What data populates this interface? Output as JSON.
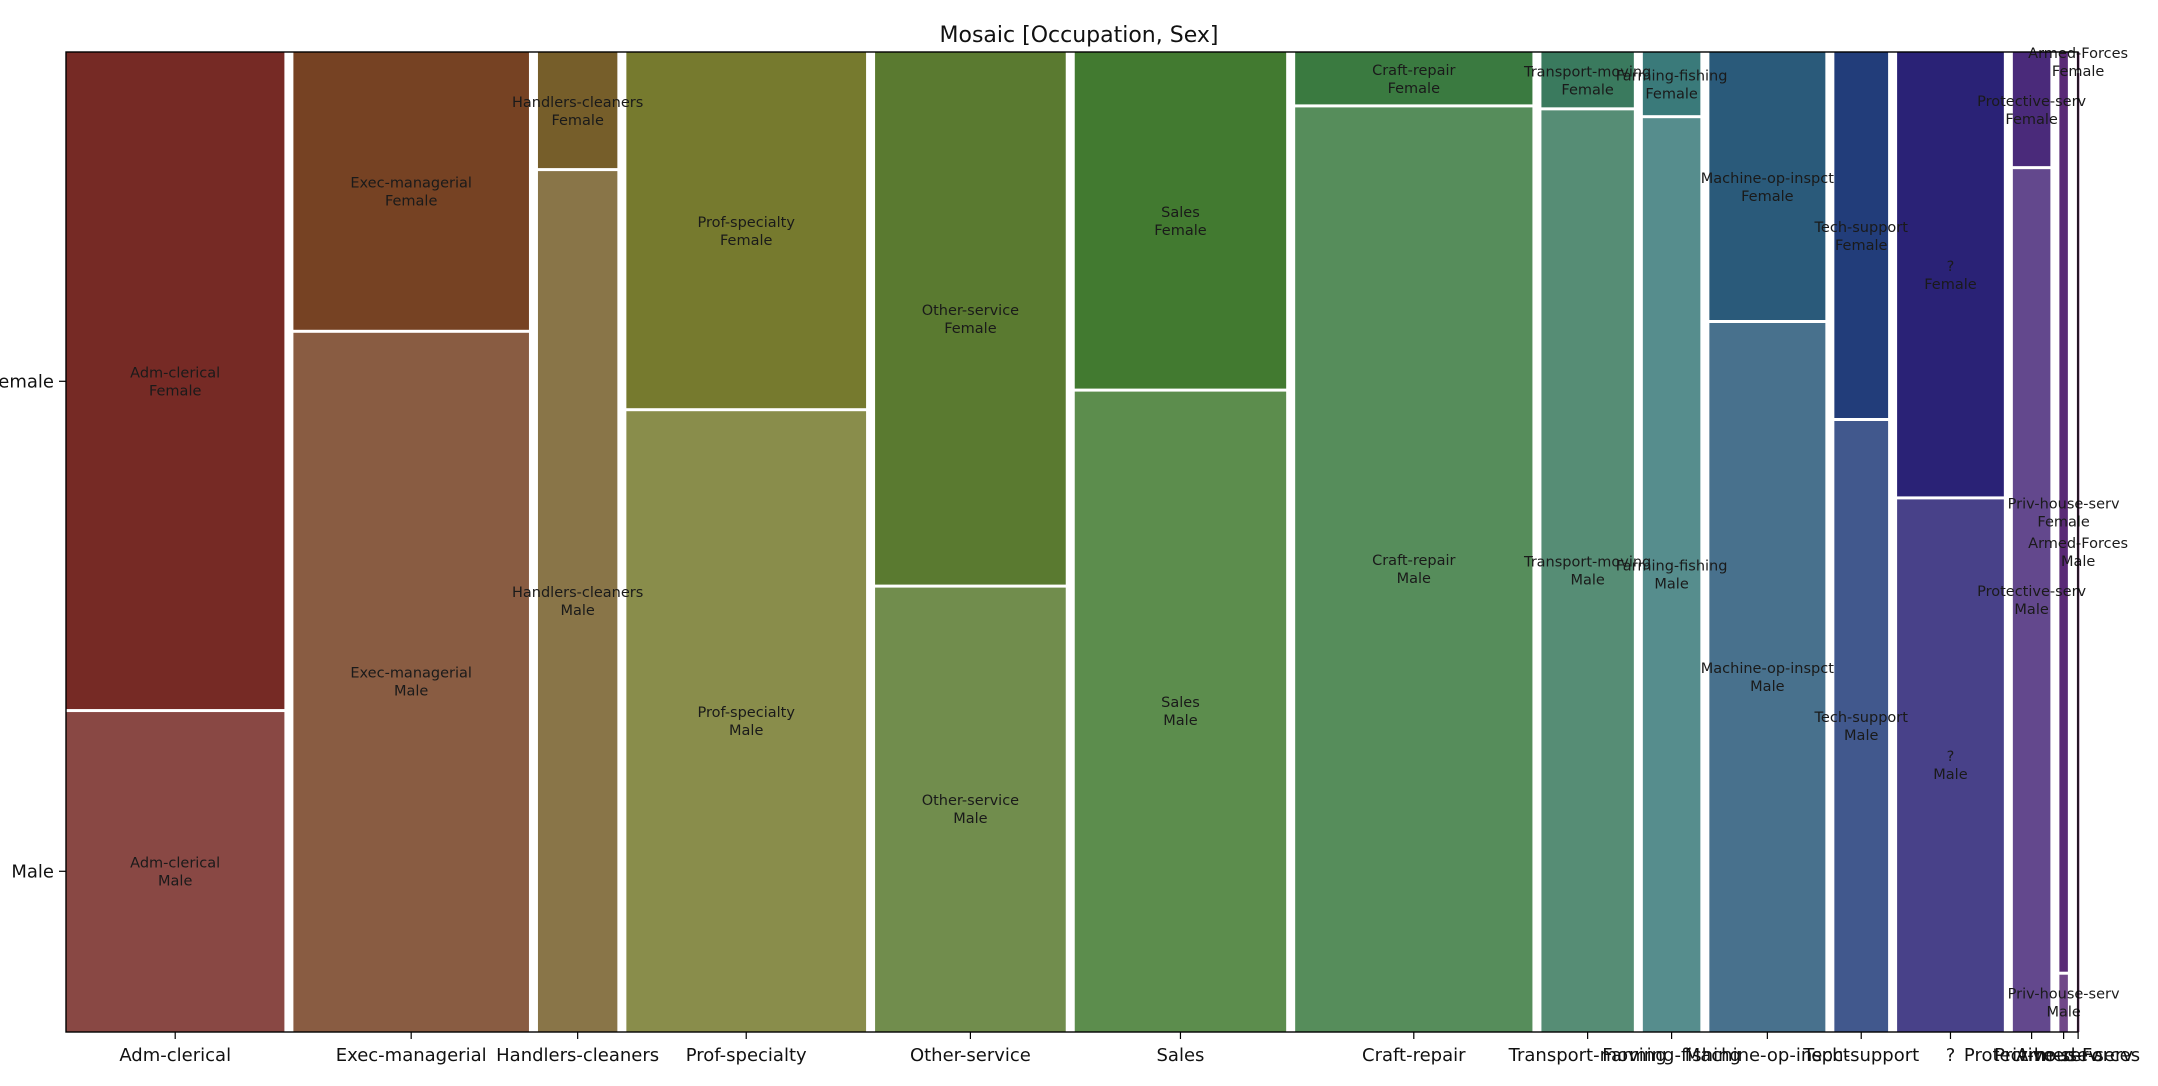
{
  "chart_data": {
    "type": "mosaic",
    "title": "Mosaic [Occupation, Sex]",
    "y_categories": [
      "Male",
      "Female"
    ],
    "legend": "none",
    "grid": false,
    "categories": [
      {
        "name": "Adm-clerical",
        "share": 0.1158,
        "female_fraction": 0.672,
        "color": "#762a25",
        "female_label": "Adm-clerical\nFemale",
        "male_label": "Adm-clerical\nMale"
      },
      {
        "name": "Exec-managerial",
        "share": 0.1249,
        "female_fraction": 0.285,
        "color": "#764223",
        "female_label": "Exec-managerial\nFemale",
        "male_label": "Exec-managerial\nMale"
      },
      {
        "name": "Handlers-cleaners",
        "share": 0.0421,
        "female_fraction": 0.12,
        "color": "#765e2a",
        "female_label": "Handlers-cleaners\nFemale",
        "male_label": "Handlers-cleaners\nMale"
      },
      {
        "name": "Prof-specialty",
        "share": 0.1271,
        "female_fraction": 0.365,
        "color": "#767a2e",
        "female_label": "Prof-specialty\nFemale",
        "male_label": "Prof-specialty\nMale"
      },
      {
        "name": "Other-service",
        "share": 0.1011,
        "female_fraction": 0.545,
        "color": "#5a7a30",
        "female_label": "Other-service\nFemale",
        "male_label": "Other-service\nMale"
      },
      {
        "name": "Sales",
        "share": 0.1121,
        "female_fraction": 0.345,
        "color": "#427a30",
        "female_label": "Sales\nFemale",
        "male_label": "Sales\nMale"
      },
      {
        "name": "Craft-repair",
        "share": 0.1258,
        "female_fraction": 0.055,
        "color": "#3a7a40",
        "female_label": "Craft-repair\nFemale",
        "male_label": "Craft-repair\nMale"
      },
      {
        "name": "Transport-moving",
        "share": 0.049,
        "female_fraction": 0.058,
        "color": "#3a7a5e",
        "female_label": "Transport-moving\nFemale",
        "male_label": "Transport-moving\nMale"
      },
      {
        "name": "Farming-fishing",
        "share": 0.0305,
        "female_fraction": 0.066,
        "color": "#3a7a7a",
        "female_label": "Farming-fishing\nFemale",
        "male_label": "Farming-fishing\nMale"
      },
      {
        "name": "Machine-op-inspct",
        "share": 0.0615,
        "female_fraction": 0.275,
        "color": "#2a5a7a",
        "female_label": "Machine-op-inspct\nFemale",
        "male_label": "Machine-op-inspct\nMale"
      },
      {
        "name": "Tech-support",
        "share": 0.0285,
        "female_fraction": 0.375,
        "color": "#223d7a",
        "female_label": "Tech-support\nFemale",
        "male_label": "Tech-support\nMale"
      },
      {
        "name": "?",
        "share": 0.0566,
        "female_fraction": 0.455,
        "color": "#2a2276",
        "female_label": "?\nFemale",
        "male_label": "?\nMale"
      },
      {
        "name": "Protective-serv",
        "share": 0.0199,
        "female_fraction": 0.118,
        "color": "#4a2a7a",
        "female_label": "Protective-serv\nFemale",
        "male_label": "Protective-serv\nMale"
      },
      {
        "name": "Priv-house-serv",
        "share": 0.0045,
        "female_fraction": 0.94,
        "color": "#5a2a76",
        "female_label": "Priv-house-serv\nFemale",
        "male_label": "Priv-house-serv\nMale"
      },
      {
        "name": "Armed-Forces",
        "share": 0.0006,
        "female_fraction": 0.02,
        "color": "#6a2a6a",
        "female_label": "Armed-Forces\nFemale",
        "male_label": "Armed-Forces\nMale"
      }
    ]
  }
}
